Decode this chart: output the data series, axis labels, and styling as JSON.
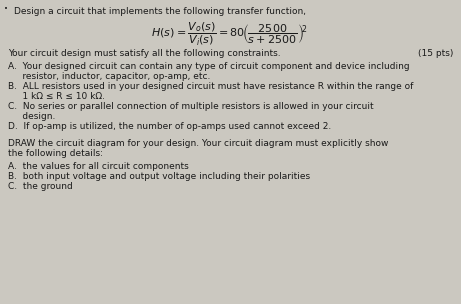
{
  "background_color": "#cbc8c0",
  "title_line": "Design a circuit that implements the following transfer function,",
  "constraints_header": "Your circuit design must satisfy all the following constraints.",
  "points": "(15 pts)",
  "constraint_A1": "A.  Your designed circuit can contain any type of circuit component and device including",
  "constraint_A2": "     resistor, inductor, capacitor, op-amp, etc.",
  "constraint_B1": "B.  ALL resistors used in your designed circuit must have resistance R within the range of",
  "constraint_B2": "     1 kΩ ≤ R ≤ 10 kΩ.",
  "constraint_C1": "C.  No series or parallel connection of multiple resistors is allowed in your circuit",
  "constraint_C2": "     design.",
  "constraint_D": "D.  If op-amp is utilized, the number of op-amps used cannot exceed 2.",
  "draw_header1": "DRAW the circuit diagram for your design. Your circuit diagram must explicitly show",
  "draw_header2": "the following details:",
  "draw_A": "A.  the values for all circuit components",
  "draw_B": "B.  both input voltage and output voltage including their polarities",
  "draw_C": "C.  the ground",
  "font_size": 6.5,
  "font_size_eq": 8.0,
  "text_color": "#1a1a1a"
}
